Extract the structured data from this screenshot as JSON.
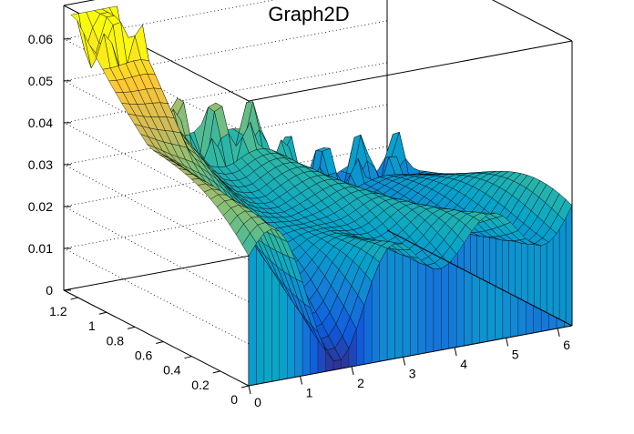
{
  "chart_data": {
    "type": "surface",
    "title": "Graph2D",
    "x_ticks": [
      "0",
      "1",
      "2",
      "3",
      "4",
      "5",
      "6"
    ],
    "y_ticks": [
      "0",
      "0.2",
      "0.4",
      "0.6",
      "0.8",
      "1",
      "1.2"
    ],
    "z_ticks": [
      "0",
      "0.01",
      "0.02",
      "0.03",
      "0.04",
      "0.05",
      "0.06"
    ],
    "xlim": [
      0,
      6.28
    ],
    "ylim": [
      0,
      1.3
    ],
    "zlim": [
      0,
      0.068
    ],
    "colormap": "kBird",
    "colors": [
      "#352a87",
      "#0f5cdd",
      "#1481d6",
      "#06a4ca",
      "#2eb7a4",
      "#87bf77",
      "#d1bb59",
      "#fec832",
      "#f9fb0e"
    ],
    "grid": {
      "x": 42,
      "y": 28
    }
  }
}
